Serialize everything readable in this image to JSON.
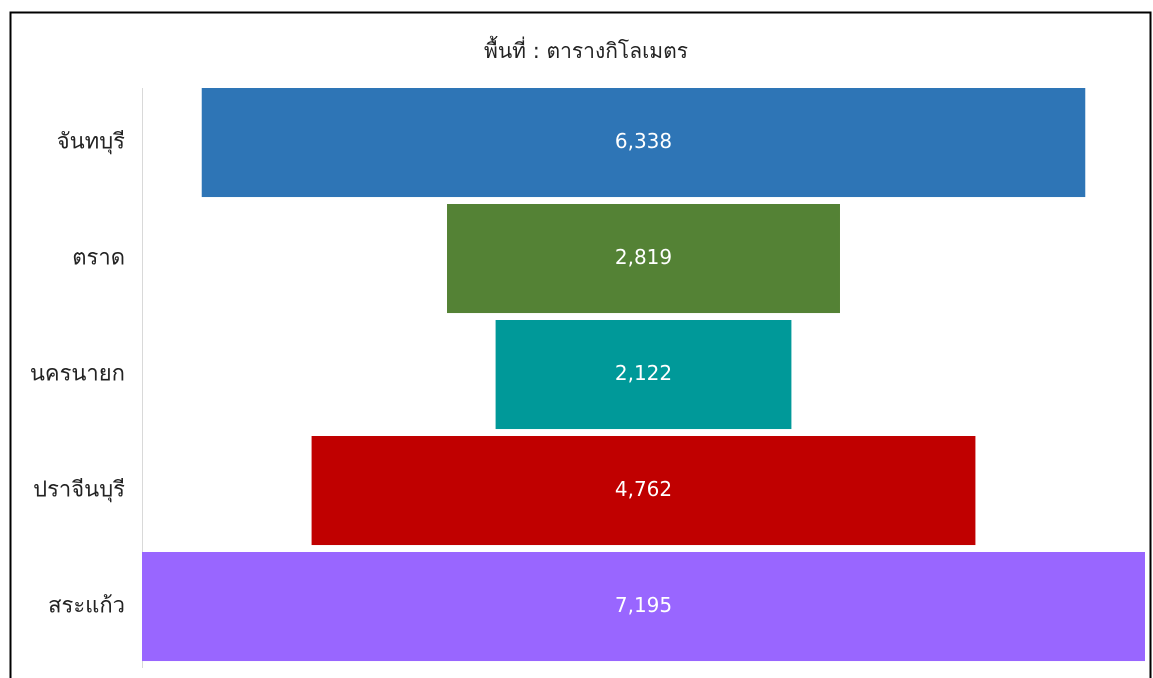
{
  "chart_data": {
    "type": "funnel",
    "title": "พื้นที่ : ตารางกิโลเมตร",
    "categories": [
      "จันทบุรี",
      "ตราด",
      "นครนายก",
      "ปราจีนบุรี",
      "สระแก้ว"
    ],
    "values": [
      6338,
      2819,
      2122,
      4762,
      7195
    ],
    "value_labels": [
      "6,338",
      "2,819",
      "2,122",
      "4,762",
      "7,195"
    ],
    "colors": [
      "#2e75b6",
      "#548235",
      "#009999",
      "#c00000",
      "#9966ff"
    ]
  }
}
